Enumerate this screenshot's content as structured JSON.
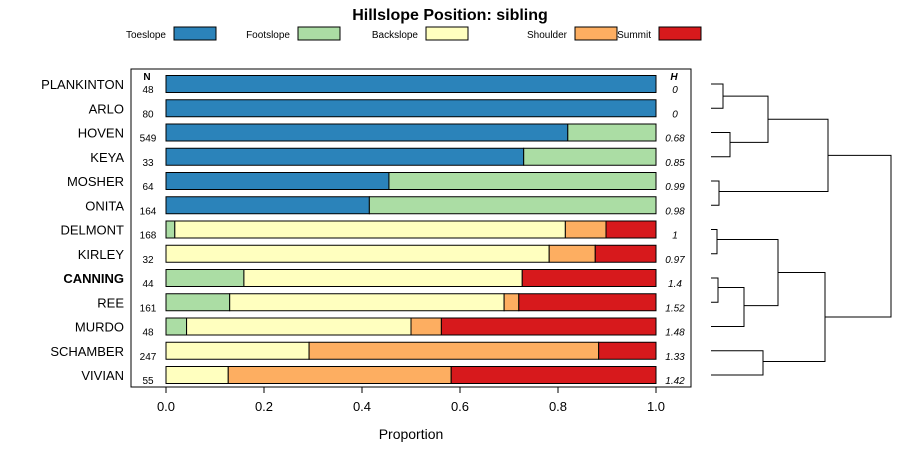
{
  "chart_data": {
    "type": "bar",
    "orientation": "horizontal-stacked",
    "title": "Hillslope Position: sibling",
    "xlabel": "Proportion",
    "ylabel": "",
    "xlim": [
      0,
      1
    ],
    "xticks": [
      "0.0",
      "0.2",
      "0.4",
      "0.6",
      "0.8",
      "1.0"
    ],
    "legend_position": "top",
    "n_header": "N",
    "h_header": "H",
    "categories": [
      "Toeslope",
      "Footslope",
      "Backslope",
      "Shoulder",
      "Summit"
    ],
    "colors": [
      "#2b83ba",
      "#abdda4",
      "#ffffbf",
      "#fdae61",
      "#d7191c"
    ],
    "rows": [
      {
        "name": "PLANKINTON",
        "n": "48",
        "h": "0",
        "bold": false,
        "values": [
          1.0,
          0,
          0,
          0,
          0
        ]
      },
      {
        "name": "ARLO",
        "n": "80",
        "h": "0",
        "bold": false,
        "values": [
          1.0,
          0,
          0,
          0,
          0
        ]
      },
      {
        "name": "HOVEN",
        "n": "549",
        "h": "0.68",
        "bold": false,
        "values": [
          0.82,
          0.18,
          0,
          0,
          0
        ]
      },
      {
        "name": "KEYA",
        "n": "33",
        "h": "0.85",
        "bold": false,
        "values": [
          0.73,
          0.27,
          0,
          0,
          0
        ]
      },
      {
        "name": "MOSHER",
        "n": "64",
        "h": "0.99",
        "bold": false,
        "values": [
          0.455,
          0.545,
          0,
          0,
          0
        ]
      },
      {
        "name": "ONITA",
        "n": "164",
        "h": "0.98",
        "bold": false,
        "values": [
          0.415,
          0.585,
          0,
          0,
          0
        ]
      },
      {
        "name": "DELMONT",
        "n": "168",
        "h": "1",
        "bold": false,
        "values": [
          0,
          0.018,
          0.797,
          0.083,
          0.102
        ]
      },
      {
        "name": "KIRLEY",
        "n": "32",
        "h": "0.97",
        "bold": false,
        "values": [
          0,
          0,
          0.782,
          0.094,
          0.124
        ]
      },
      {
        "name": "CANNING",
        "n": "44",
        "h": "1.4",
        "bold": true,
        "values": [
          0,
          0.159,
          0.568,
          0,
          0.273
        ]
      },
      {
        "name": "REE",
        "n": "161",
        "h": "1.52",
        "bold": false,
        "values": [
          0,
          0.13,
          0.56,
          0.03,
          0.28
        ]
      },
      {
        "name": "MURDO",
        "n": "48",
        "h": "1.48",
        "bold": false,
        "values": [
          0,
          0.042,
          0.458,
          0.062,
          0.438
        ]
      },
      {
        "name": "SCHAMBER",
        "n": "247",
        "h": "1.33",
        "bold": false,
        "values": [
          0,
          0,
          0.292,
          0.591,
          0.117
        ]
      },
      {
        "name": "VIVIAN",
        "n": "55",
        "h": "1.42",
        "bold": false,
        "values": [
          0,
          0,
          0.127,
          0.455,
          0.418
        ]
      }
    ],
    "dendrogram": "hierarchical clustering of rows (right side)"
  }
}
